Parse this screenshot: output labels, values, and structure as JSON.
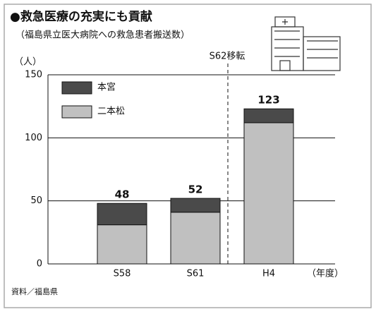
{
  "chart_data": {
    "type": "stacked-bar",
    "title": "●救急医療の充実にも貢献",
    "subtitle": "（福島県立医大病院への救急患者搬送数）",
    "y_unit": "（人）",
    "x_unit": "（年度）",
    "source": "資料／福島県",
    "annotation": "S62移転",
    "categories": [
      "S58",
      "S61",
      "H4"
    ],
    "series": [
      {
        "name": "二本松",
        "color": "#c0c0c0",
        "values": [
          31,
          41,
          112
        ]
      },
      {
        "name": "本宮",
        "color": "#4a4a4a",
        "values": [
          17,
          11,
          11
        ]
      }
    ],
    "totals": [
      48,
      52,
      123
    ],
    "ylim": [
      0,
      150
    ],
    "yticks": [
      0,
      50,
      100,
      150
    ],
    "grid": true
  }
}
